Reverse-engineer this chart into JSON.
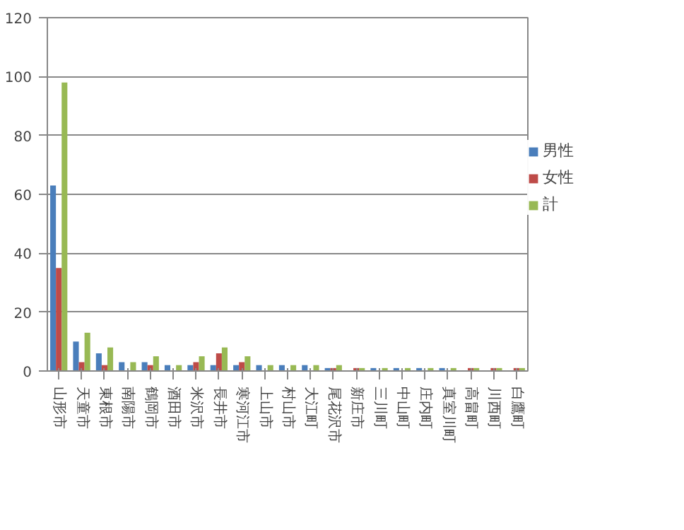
{
  "chart_data": {
    "type": "bar",
    "categories": [
      "山形市",
      "天童市",
      "東根市",
      "南陽市",
      "鶴岡市",
      "酒田市",
      "米沢市",
      "長井市",
      "寒河江市",
      "上山市",
      "村山市",
      "大江町",
      "尾花沢市",
      "新庄市",
      "三川町",
      "中山町",
      "庄内町",
      "真室川町",
      "高畠町",
      "川西町",
      "白鷹町"
    ],
    "series": [
      {
        "name": "男性",
        "color": "#4a7ebb",
        "values": [
          63,
          10,
          6,
          3,
          3,
          2,
          2,
          2,
          2,
          2,
          2,
          2,
          1,
          0,
          1,
          1,
          1,
          1,
          0,
          0,
          0
        ]
      },
      {
        "name": "女性",
        "color": "#be4b48",
        "values": [
          35,
          3,
          2,
          0,
          2,
          0,
          3,
          6,
          3,
          0,
          0,
          0,
          1,
          1,
          0,
          0,
          0,
          0,
          1,
          1,
          1
        ]
      },
      {
        "name": "計",
        "color": "#98b954",
        "values": [
          98,
          13,
          8,
          3,
          5,
          2,
          5,
          8,
          5,
          2,
          2,
          2,
          2,
          1,
          1,
          1,
          1,
          1,
          1,
          1,
          1
        ]
      }
    ],
    "ylim": [
      0,
      120
    ],
    "yticks": [
      0,
      20,
      40,
      60,
      80,
      100,
      120
    ],
    "grid": "y",
    "legend": "right"
  }
}
